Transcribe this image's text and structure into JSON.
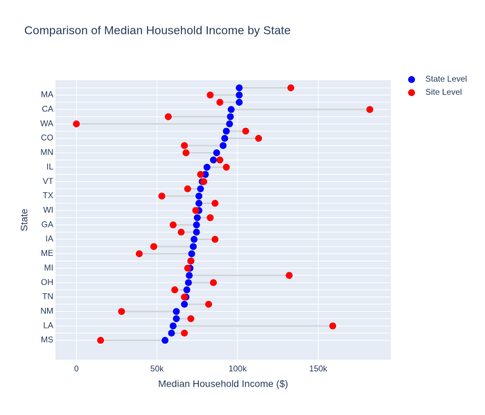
{
  "chart_data": {
    "type": "dumbbell",
    "title": "Comparison of Median Household Income by State",
    "x_label": "Median Household Income ($)",
    "y_label": "State",
    "categories": [
      null,
      "MA",
      null,
      "CA",
      null,
      "WA",
      null,
      "CO",
      null,
      "MN",
      null,
      "IL",
      null,
      "VT",
      null,
      "TX",
      null,
      "WI",
      null,
      "GA",
      null,
      "IA",
      null,
      "ME",
      null,
      "MI",
      null,
      "OH",
      null,
      "TN",
      null,
      "NM",
      null,
      "LA",
      null,
      "MS"
    ],
    "series": [
      {
        "name": "State Level",
        "color": "#0000ff",
        "values": [
          101000,
          101000,
          101000,
          96000,
          95500,
          95000,
          93000,
          92000,
          91000,
          87000,
          85000,
          81000,
          80000,
          78000,
          77000,
          76000,
          76000,
          76000,
          75000,
          74500,
          74500,
          73000,
          72500,
          71500,
          71000,
          70500,
          70000,
          69500,
          68500,
          68000,
          67000,
          62000,
          62000,
          60000,
          59000,
          55000
        ]
      },
      {
        "name": "Site Level",
        "color": "#ff0000",
        "values": [
          133000,
          83000,
          89000,
          182000,
          57000,
          0,
          105000,
          113000,
          67000,
          68000,
          89000,
          93000,
          77000,
          79000,
          69000,
          53000,
          86000,
          74000,
          83000,
          60000,
          65000,
          86000,
          48000,
          39000,
          71000,
          69000,
          132000,
          85000,
          61000,
          67000,
          82000,
          28000,
          71000,
          159000,
          67000,
          15000
        ]
      }
    ],
    "xlim": [
      -13000,
      195000
    ],
    "xticks": [
      0,
      {
        "value": 50000,
        "label": "50k"
      },
      {
        "value": 100000,
        "label": "100k"
      },
      {
        "value": 150000,
        "label": "150k"
      }
    ],
    "grid": true,
    "connector_color": "#d3d3d3",
    "legend": "right"
  }
}
